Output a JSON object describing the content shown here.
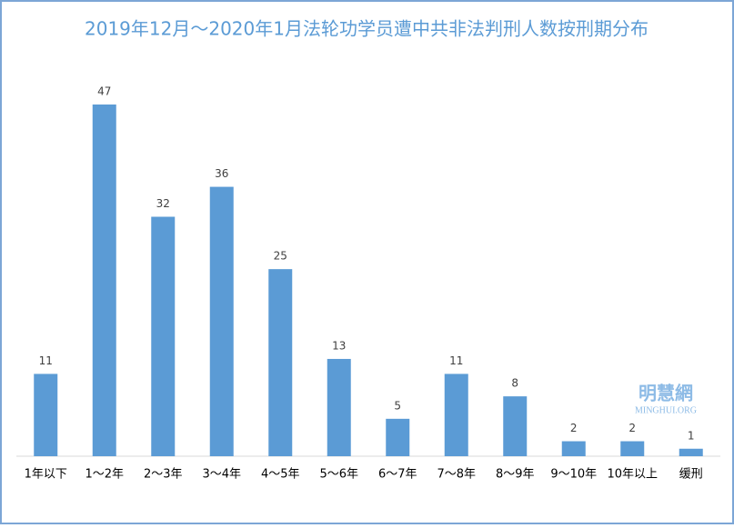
{
  "chart_data": {
    "type": "bar",
    "title": "2019年12月～2020年1月法轮功学员遭中共非法判刑人数按刑期分布",
    "categories": [
      "1年以下",
      "1～2年",
      "2～3年",
      "3～4年",
      "4～5年",
      "5～6年",
      "6～7年",
      "7～8年",
      "8～9年",
      "9～10年",
      "10年以上",
      "缓刑"
    ],
    "values": [
      11,
      47,
      32,
      36,
      25,
      13,
      5,
      11,
      8,
      2,
      2,
      1
    ],
    "color": "#5b9bd5",
    "watermark": [
      "明慧網",
      "MINGHUI.ORG"
    ]
  }
}
